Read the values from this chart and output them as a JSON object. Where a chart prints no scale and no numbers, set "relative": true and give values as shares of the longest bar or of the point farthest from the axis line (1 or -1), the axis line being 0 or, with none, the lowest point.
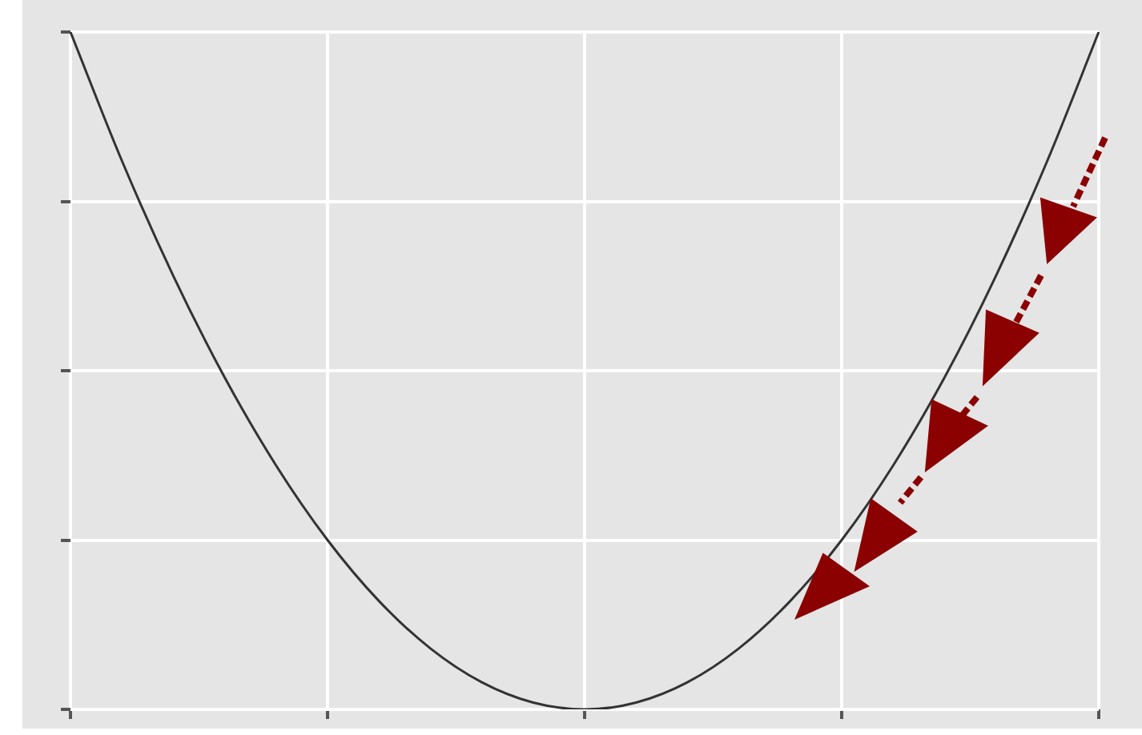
{
  "chart_data": {
    "type": "line",
    "relative": true,
    "grid": true,
    "categories": [
      null,
      null,
      null,
      null,
      null,
      null,
      null,
      null,
      null,
      null,
      null,
      null,
      null,
      null,
      null,
      null,
      null,
      null,
      null,
      null,
      null
    ],
    "series": [
      {
        "color": "#333333",
        "values": [
          1,
          0.81,
          0.64,
          0.49,
          0.36,
          0.25,
          0.16,
          0.09,
          0.04,
          0.01,
          0,
          0.01,
          0.04,
          0.09,
          0.16,
          0.25,
          0.36,
          0.49,
          0.64,
          0.81,
          1
        ]
      }
    ]
  }
}
